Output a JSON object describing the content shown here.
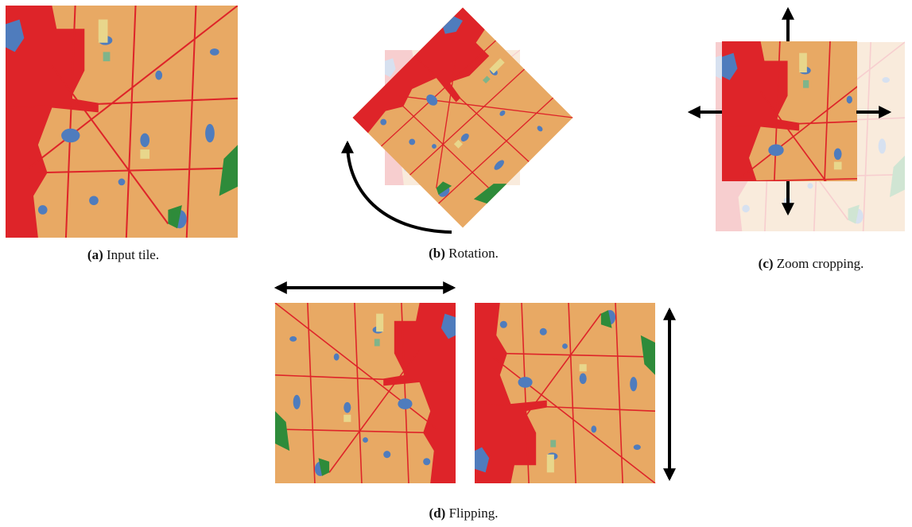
{
  "captions": [
    {
      "label": "(a)",
      "text": "Input tile."
    },
    {
      "label": "(b)",
      "text": "Rotation."
    },
    {
      "label": "(c)",
      "text": "Zoom cropping."
    },
    {
      "label": "(d)",
      "text": "Flipping."
    }
  ]
}
